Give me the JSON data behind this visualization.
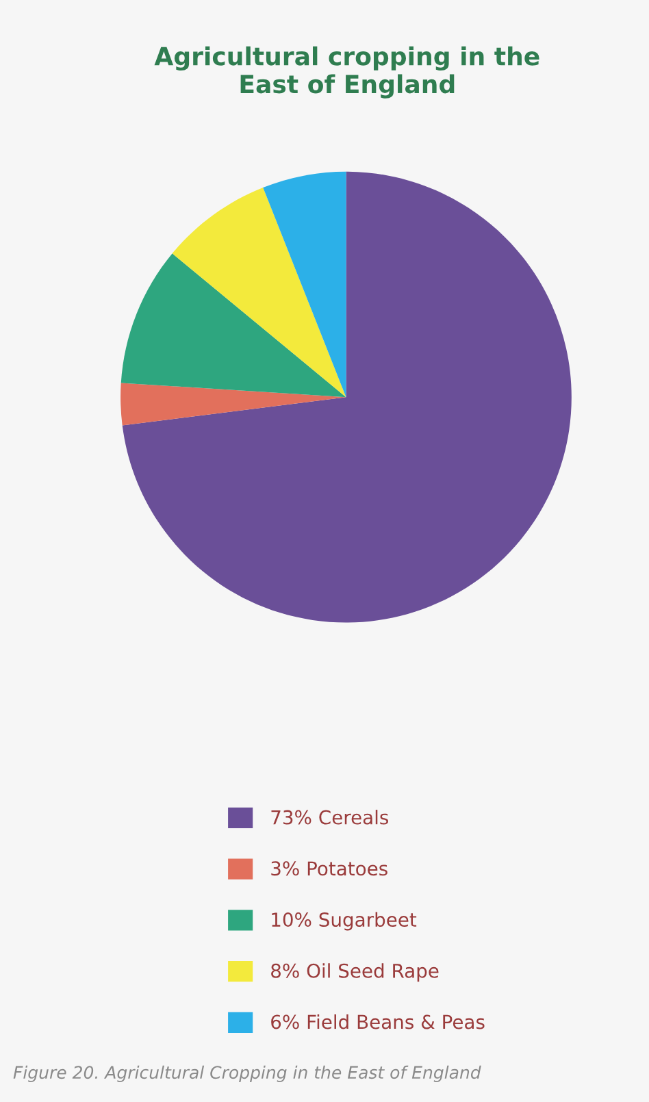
{
  "chart_data": {
    "type": "pie",
    "title": "Agricultural cropping in the\nEast of England",
    "categories": [
      "Cereals",
      "Potatoes",
      "Sugarbeet",
      "Oil Seed Rape",
      "Field Beans & Peas"
    ],
    "values": [
      73,
      3,
      10,
      8,
      6
    ],
    "value_labels": [
      "73%",
      "3%",
      "10%",
      "8%",
      "6%"
    ],
    "colors": [
      "#6a4f98",
      "#e2705c",
      "#2ea67f",
      "#f3ea3c",
      "#2cb0e8"
    ],
    "legend": "bottom",
    "annotations": [
      "Figure 20. Agricultural Cropping in the East of England"
    ]
  }
}
